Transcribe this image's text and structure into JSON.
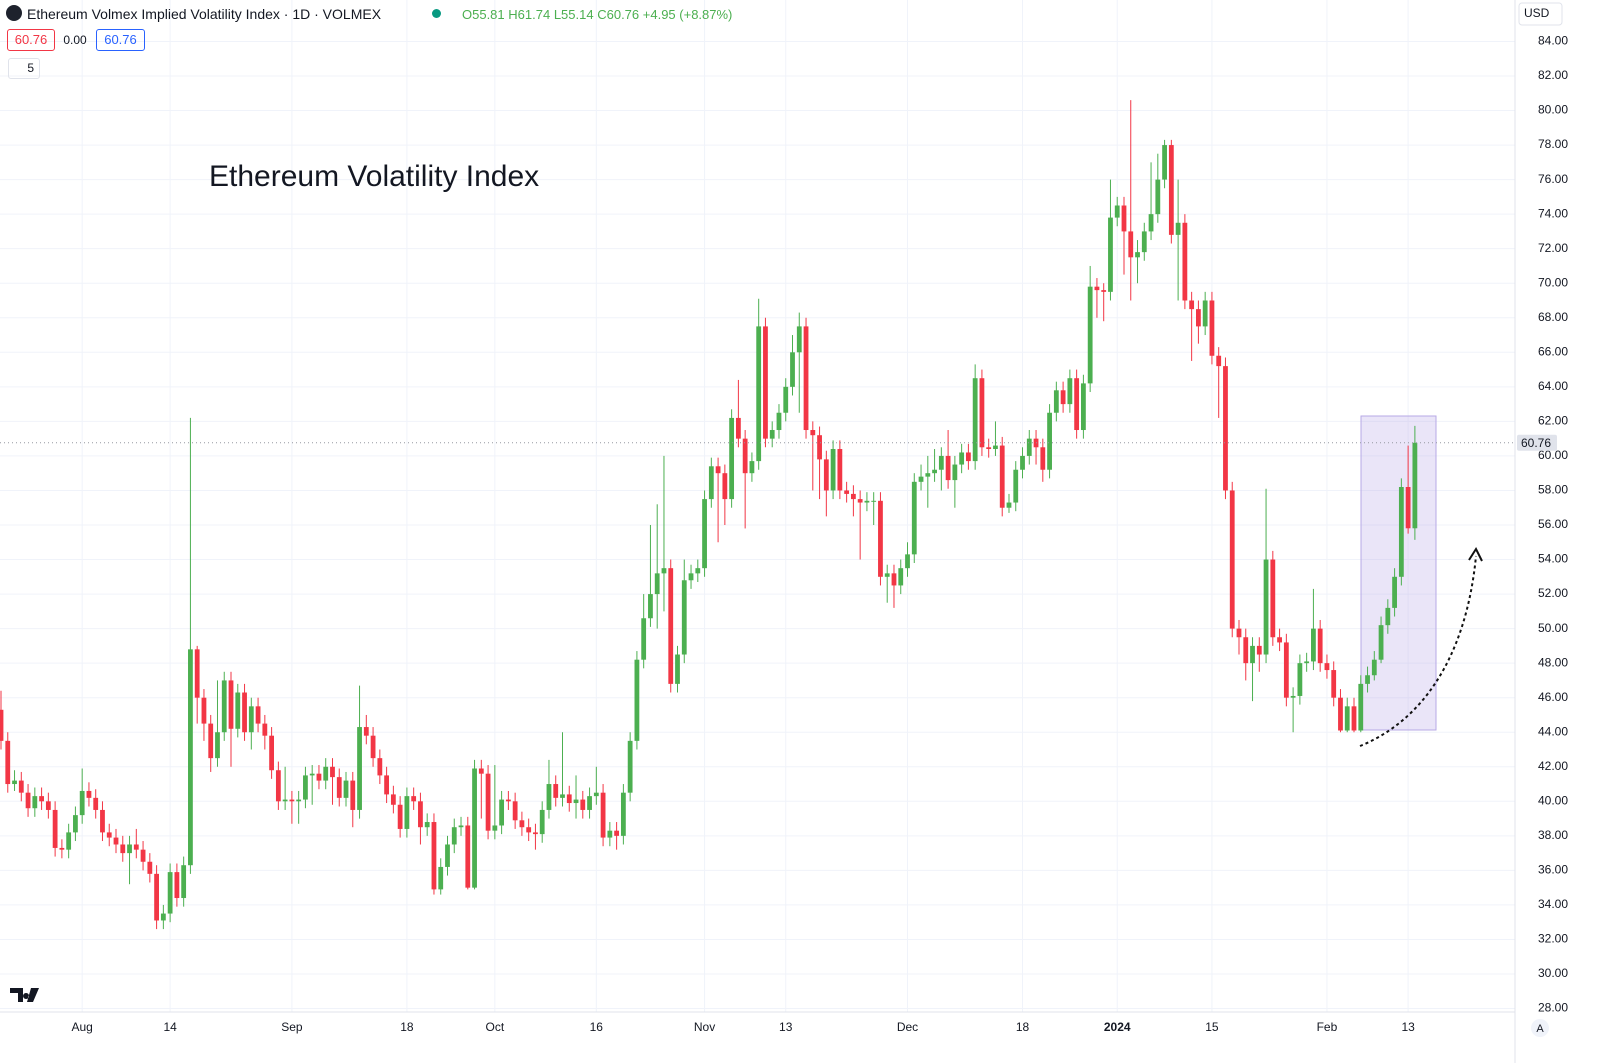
{
  "chart_data": {
    "type": "candlestick",
    "title": "Ethereum Volmex Implied Volatility Index · 1D · VOLMEX",
    "header": {
      "open": "O55.81",
      "high": "H61.74",
      "low": "L55.14",
      "close": "C60.76",
      "change": "+4.95 (+8.87%)",
      "price_a": "60.76",
      "spread": "0.00",
      "price_b": "60.76",
      "indicator": "5",
      "currency": "USD",
      "scale_mode": "A"
    },
    "annotation": "Ethereum Volatility Index",
    "up_color": "#4caf50",
    "down_color": "#f23645",
    "grid": true,
    "last_price": {
      "value": 60.76,
      "label": "60.76"
    },
    "categories": [
      null,
      null,
      null,
      null,
      null,
      null,
      null,
      null,
      null,
      null,
      null,
      null,
      "Aug",
      null,
      null,
      null,
      null,
      null,
      null,
      null,
      null,
      null,
      null,
      null,
      null,
      "14",
      null,
      null,
      null,
      null,
      null,
      null,
      null,
      null,
      null,
      null,
      null,
      null,
      null,
      null,
      null,
      null,
      null,
      "Sep",
      null,
      null,
      null,
      null,
      null,
      null,
      null,
      null,
      null,
      null,
      null,
      null,
      null,
      null,
      null,
      null,
      "18",
      null,
      null,
      null,
      null,
      null,
      null,
      null,
      null,
      null,
      null,
      null,
      null,
      "Oct",
      null,
      null,
      null,
      null,
      null,
      null,
      null,
      null,
      null,
      null,
      null,
      null,
      null,
      null,
      "16",
      null,
      null,
      null,
      null,
      null,
      null,
      null,
      null,
      null,
      null,
      null,
      null,
      null,
      null,
      null,
      "Nov",
      null,
      null,
      null,
      null,
      null,
      null,
      null,
      null,
      null,
      null,
      null,
      "13",
      null,
      null,
      null,
      null,
      null,
      null,
      null,
      null,
      null,
      null,
      null,
      null,
      null,
      null,
      null,
      null,
      null,
      "Dec",
      null,
      null,
      null,
      null,
      null,
      null,
      null,
      null,
      null,
      null,
      null,
      null,
      null,
      null,
      null,
      null,
      "18",
      null,
      null,
      null,
      null,
      null,
      null,
      null,
      null,
      null,
      null,
      null,
      null,
      null,
      "2024",
      null,
      null,
      null,
      null,
      null,
      null,
      null,
      null,
      null,
      null,
      null,
      null,
      null,
      "15",
      null,
      null,
      null,
      null,
      null,
      null,
      null,
      null,
      null,
      null,
      null,
      null,
      null,
      null,
      null,
      null,
      "Feb",
      null,
      null,
      null,
      null,
      null,
      null,
      null,
      null,
      null,
      null,
      null,
      "13",
      null
    ],
    "open": [
      45.3,
      43.5,
      41.0,
      41.2,
      40.5,
      39.6,
      40.3,
      40.0,
      39.5,
      37.3,
      37.2,
      38.2,
      39.2,
      40.6,
      40.2,
      39.5,
      38.2,
      37.9,
      37.5,
      37.0,
      37.5,
      37.2,
      36.5,
      35.8,
      33.1,
      33.5,
      35.9,
      34.4,
      36.3,
      48.8,
      46.0,
      44.5,
      42.5,
      44.0,
      47.0,
      44.2,
      46.3,
      44.0,
      45.5,
      44.5,
      43.8,
      41.8,
      40.0,
      40.1,
      40.0,
      40.1,
      41.5,
      41.6,
      41.2,
      42.0,
      41.4,
      40.2,
      41.2,
      39.5,
      44.3,
      43.8,
      42.5,
      41.5,
      40.4,
      39.8,
      38.4,
      40.3,
      40.0,
      38.5,
      38.8,
      34.9,
      36.2,
      37.5,
      38.5,
      38.6,
      35.0,
      41.9,
      41.6,
      38.3,
      38.6,
      40.1,
      40.0,
      38.9,
      38.5,
      38.2,
      38.1,
      39.5,
      41.0,
      40.2,
      40.4,
      39.9,
      40.1,
      39.5,
      40.3,
      40.5,
      37.9,
      38.3,
      38.0,
      40.5,
      43.5,
      48.2,
      50.6,
      52.0,
      53.2,
      53.5,
      46.8,
      48.5,
      52.8,
      53.2,
      53.5,
      57.5,
      59.4,
      59.0,
      57.5,
      62.2,
      61.0,
      59.0,
      59.7,
      67.5,
      61.0,
      61.5,
      62.5,
      64.0,
      66.0,
      67.5,
      61.5,
      61.2,
      59.8,
      58.0,
      60.4,
      58.0,
      57.8,
      57.5,
      57.3,
      57.4,
      57.4,
      53.0,
      53.2,
      52.5,
      53.5,
      54.3,
      58.5,
      58.8,
      59.0,
      59.2,
      60.0,
      58.6,
      59.5,
      60.2,
      59.7,
      64.5,
      60.5,
      60.4,
      60.6,
      57.0,
      57.3,
      59.2,
      60.0,
      61.0,
      60.5,
      59.2,
      62.5,
      63.8,
      63.0,
      64.5,
      61.5,
      64.2,
      69.8,
      69.6,
      69.5,
      73.8,
      74.5,
      73.0,
      71.5,
      71.8,
      73.0,
      74.0,
      76.0,
      78.0,
      72.8,
      73.5,
      69.0,
      68.5,
      67.5,
      69.0,
      65.8,
      65.2,
      58.0,
      50.0,
      49.5,
      48.0,
      49.0,
      48.5,
      54.0,
      49.5,
      49.2,
      46.0,
      46.1,
      48.0,
      48.1,
      50.0,
      48.0,
      47.6,
      46.0,
      44.1,
      45.5,
      44.1,
      46.8,
      47.3,
      48.2,
      50.2,
      51.2,
      53.0,
      58.2,
      55.81
    ],
    "high": [
      46.4,
      44.0,
      41.8,
      41.7,
      41.0,
      40.8,
      40.8,
      40.5,
      40.0,
      37.8,
      38.7,
      39.7,
      41.9,
      41.1,
      40.7,
      40.0,
      38.7,
      38.4,
      38.0,
      38.0,
      38.4,
      37.7,
      37.0,
      36.3,
      34.0,
      36.4,
      36.4,
      36.8,
      62.2,
      49.0,
      46.5,
      45.0,
      47.0,
      47.5,
      47.5,
      46.8,
      46.8,
      46.0,
      46.0,
      45.0,
      44.3,
      42.3,
      42.0,
      40.6,
      40.6,
      42.0,
      42.1,
      42.1,
      42.5,
      42.5,
      41.9,
      41.7,
      41.7,
      46.7,
      45.0,
      44.3,
      43.0,
      42.0,
      40.9,
      40.3,
      40.8,
      40.8,
      40.5,
      39.3,
      39.3,
      36.7,
      38.0,
      39.0,
      39.1,
      39.1,
      42.4,
      42.4,
      42.1,
      42.1,
      40.6,
      40.6,
      40.5,
      39.4,
      39.0,
      38.7,
      40.0,
      42.4,
      41.5,
      44.0,
      40.9,
      41.5,
      40.6,
      40.8,
      42.0,
      41.0,
      38.8,
      38.8,
      41.0,
      44.0,
      48.7,
      52.0,
      56.0,
      57.2,
      60.0,
      54.0,
      49.0,
      54.0,
      53.7,
      54.0,
      58.0,
      59.9,
      59.9,
      59.5,
      62.7,
      64.4,
      61.5,
      60.2,
      69.1,
      68.0,
      62.0,
      63.0,
      64.5,
      67.0,
      68.3,
      68.0,
      62.0,
      61.7,
      60.3,
      60.9,
      60.9,
      58.5,
      58.3,
      58.0,
      57.9,
      57.9,
      57.9,
      53.7,
      53.7,
      54.0,
      55.0,
      59.0,
      59.5,
      60.0,
      60.4,
      60.5,
      61.5,
      60.0,
      60.7,
      60.7,
      65.3,
      65.0,
      61.0,
      62.0,
      61.1,
      57.8,
      59.7,
      60.5,
      61.5,
      61.5,
      61.0,
      63.0,
      64.3,
      64.3,
      65.0,
      65.0,
      64.7,
      71.0,
      70.3,
      70.0,
      76.0,
      75.0,
      75.0,
      80.6,
      72.5,
      73.5,
      77.0,
      77.5,
      78.3,
      78.3,
      76.0,
      74.0,
      69.5,
      69.0,
      69.5,
      69.5,
      66.3,
      65.7,
      58.5,
      50.5,
      50.0,
      49.5,
      49.5,
      58.1,
      54.5,
      50.0,
      49.7,
      46.6,
      48.5,
      48.6,
      52.3,
      50.5,
      48.5,
      48.1,
      46.5,
      46.0,
      46.0,
      47.3,
      47.8,
      48.7,
      50.7,
      51.7,
      53.5,
      58.7,
      60.6,
      61.74
    ],
    "low": [
      43.0,
      40.5,
      40.6,
      40.0,
      39.1,
      39.1,
      39.5,
      39.0,
      36.8,
      36.7,
      36.7,
      37.7,
      38.7,
      39.7,
      39.0,
      37.7,
      37.4,
      37.0,
      36.5,
      35.2,
      36.7,
      36.0,
      35.3,
      32.6,
      32.6,
      33.0,
      33.9,
      33.9,
      35.8,
      44.5,
      43.5,
      41.7,
      42.0,
      43.5,
      42.0,
      43.7,
      43.5,
      43.0,
      44.0,
      43.0,
      41.3,
      39.5,
      39.5,
      38.7,
      38.7,
      39.6,
      39.8,
      40.7,
      40.7,
      39.8,
      39.7,
      39.7,
      38.5,
      39.0,
      43.3,
      42.0,
      41.0,
      39.9,
      39.3,
      37.9,
      37.9,
      39.5,
      37.5,
      38.0,
      34.6,
      34.6,
      35.7,
      37.0,
      38.0,
      34.9,
      34.9,
      39.0,
      37.8,
      37.8,
      38.1,
      39.5,
      38.4,
      38.0,
      37.7,
      37.2,
      37.6,
      39.0,
      39.7,
      39.7,
      39.4,
      39.0,
      39.0,
      39.0,
      39.8,
      37.4,
      37.4,
      37.2,
      37.5,
      40.0,
      43.0,
      47.7,
      50.1,
      50.0,
      51.0,
      46.3,
      46.3,
      48.0,
      52.3,
      52.7,
      53.0,
      57.0,
      55.0,
      56.0,
      57.0,
      60.5,
      55.8,
      58.5,
      59.2,
      60.5,
      60.5,
      61.0,
      62.0,
      63.5,
      62.5,
      61.0,
      58.0,
      57.5,
      56.5,
      57.5,
      57.5,
      57.3,
      56.5,
      54.0,
      56.8,
      56.0,
      52.5,
      51.5,
      51.2,
      52.0,
      53.0,
      53.8,
      58.0,
      57.0,
      58.5,
      58.0,
      58.1,
      57.0,
      59.0,
      59.2,
      59.2,
      60.0,
      59.9,
      60.0,
      56.5,
      56.7,
      56.8,
      58.7,
      59.5,
      59.5,
      58.5,
      58.7,
      62.0,
      62.5,
      62.5,
      61.0,
      61.0,
      63.7,
      68.0,
      67.8,
      69.0,
      73.3,
      70.5,
      69.0,
      70.0,
      71.3,
      72.5,
      73.5,
      75.5,
      72.3,
      69.0,
      68.5,
      65.5,
      66.5,
      67.0,
      65.3,
      62.2,
      57.5,
      49.5,
      48.5,
      47.0,
      45.8,
      47.5,
      48.0,
      49.0,
      48.7,
      45.5,
      44.0,
      45.6,
      47.5,
      47.6,
      47.5,
      47.1,
      45.5,
      44.0,
      44.0,
      44.0,
      44.0,
      46.3,
      47.0,
      48.0,
      49.7,
      50.7,
      52.5,
      55.5,
      55.14
    ],
    "close": [
      43.5,
      41.0,
      41.2,
      40.5,
      39.6,
      40.3,
      40.0,
      39.5,
      37.3,
      37.2,
      38.2,
      39.2,
      40.6,
      40.2,
      39.5,
      38.2,
      37.9,
      37.5,
      37.0,
      37.5,
      37.2,
      36.5,
      35.8,
      33.1,
      33.5,
      35.9,
      34.4,
      36.3,
      48.8,
      46.0,
      44.5,
      42.5,
      44.0,
      47.0,
      44.2,
      46.3,
      44.0,
      45.5,
      44.5,
      43.8,
      41.8,
      40.0,
      40.1,
      40.0,
      40.1,
      41.5,
      41.6,
      41.2,
      42.0,
      41.4,
      40.2,
      41.2,
      39.5,
      44.3,
      43.8,
      42.5,
      41.5,
      40.4,
      39.8,
      38.4,
      40.3,
      40.0,
      38.5,
      38.8,
      34.9,
      36.2,
      37.5,
      38.5,
      38.6,
      35.0,
      41.9,
      41.6,
      38.3,
      38.6,
      40.1,
      40.0,
      38.9,
      38.5,
      38.2,
      38.1,
      39.5,
      41.0,
      40.2,
      40.4,
      39.9,
      40.1,
      39.5,
      40.3,
      40.5,
      37.9,
      38.3,
      38.0,
      40.5,
      43.5,
      48.2,
      50.6,
      52.0,
      53.2,
      53.5,
      46.8,
      48.5,
      52.8,
      53.2,
      53.5,
      57.5,
      59.4,
      59.0,
      57.5,
      62.2,
      61.0,
      59.0,
      59.7,
      67.5,
      61.0,
      61.5,
      62.5,
      64.0,
      66.0,
      67.5,
      61.5,
      61.2,
      59.8,
      58.0,
      60.4,
      58.0,
      57.8,
      57.5,
      57.3,
      57.4,
      57.4,
      53.0,
      53.2,
      52.5,
      53.5,
      54.3,
      58.5,
      58.8,
      59.0,
      59.2,
      60.0,
      58.6,
      59.5,
      60.2,
      59.7,
      64.5,
      60.5,
      60.4,
      60.6,
      57.0,
      57.3,
      59.2,
      60.0,
      61.0,
      60.5,
      59.2,
      62.5,
      63.8,
      63.0,
      64.5,
      61.5,
      64.2,
      69.8,
      69.6,
      69.5,
      73.8,
      74.5,
      73.0,
      71.5,
      71.8,
      73.0,
      74.0,
      76.0,
      78.0,
      72.8,
      73.5,
      69.0,
      68.5,
      67.5,
      69.0,
      65.8,
      65.2,
      58.0,
      50.0,
      49.5,
      48.0,
      49.0,
      48.5,
      54.0,
      49.5,
      49.2,
      46.0,
      46.1,
      48.0,
      48.1,
      50.0,
      48.0,
      47.6,
      46.0,
      44.1,
      45.5,
      44.1,
      46.8,
      47.3,
      48.2,
      50.2,
      51.2,
      53.0,
      58.2,
      55.81,
      60.76
    ],
    "ylim": [
      27.8,
      86.4
    ],
    "yticks": [
      {
        "value": 28,
        "label": "28.00"
      },
      {
        "value": 30,
        "label": "30.00"
      },
      {
        "value": 32,
        "label": "32.00"
      },
      {
        "value": 34,
        "label": "34.00"
      },
      {
        "value": 36,
        "label": "36.00"
      },
      {
        "value": 38,
        "label": "38.00"
      },
      {
        "value": 40,
        "label": "40.00"
      },
      {
        "value": 42,
        "label": "42.00"
      },
      {
        "value": 44,
        "label": "44.00"
      },
      {
        "value": 46,
        "label": "46.00"
      },
      {
        "value": 48,
        "label": "48.00"
      },
      {
        "value": 50,
        "label": "50.00"
      },
      {
        "value": 52,
        "label": "52.00"
      },
      {
        "value": 54,
        "label": "54.00"
      },
      {
        "value": 56,
        "label": "56.00"
      },
      {
        "value": 58,
        "label": "58.00"
      },
      {
        "value": 60,
        "label": "60.00"
      },
      {
        "value": 62,
        "label": "62.00"
      },
      {
        "value": 64,
        "label": "64.00"
      },
      {
        "value": 66,
        "label": "66.00"
      },
      {
        "value": 68,
        "label": "68.00"
      },
      {
        "value": 70,
        "label": "70.00"
      },
      {
        "value": 72,
        "label": "72.00"
      },
      {
        "value": 74,
        "label": "74.00"
      },
      {
        "value": 76,
        "label": "76.00"
      },
      {
        "value": 78,
        "label": "78.00"
      },
      {
        "value": 80,
        "label": "80.00"
      },
      {
        "value": 82,
        "label": "82.00"
      },
      {
        "value": 84,
        "label": "84.00"
      }
    ]
  }
}
